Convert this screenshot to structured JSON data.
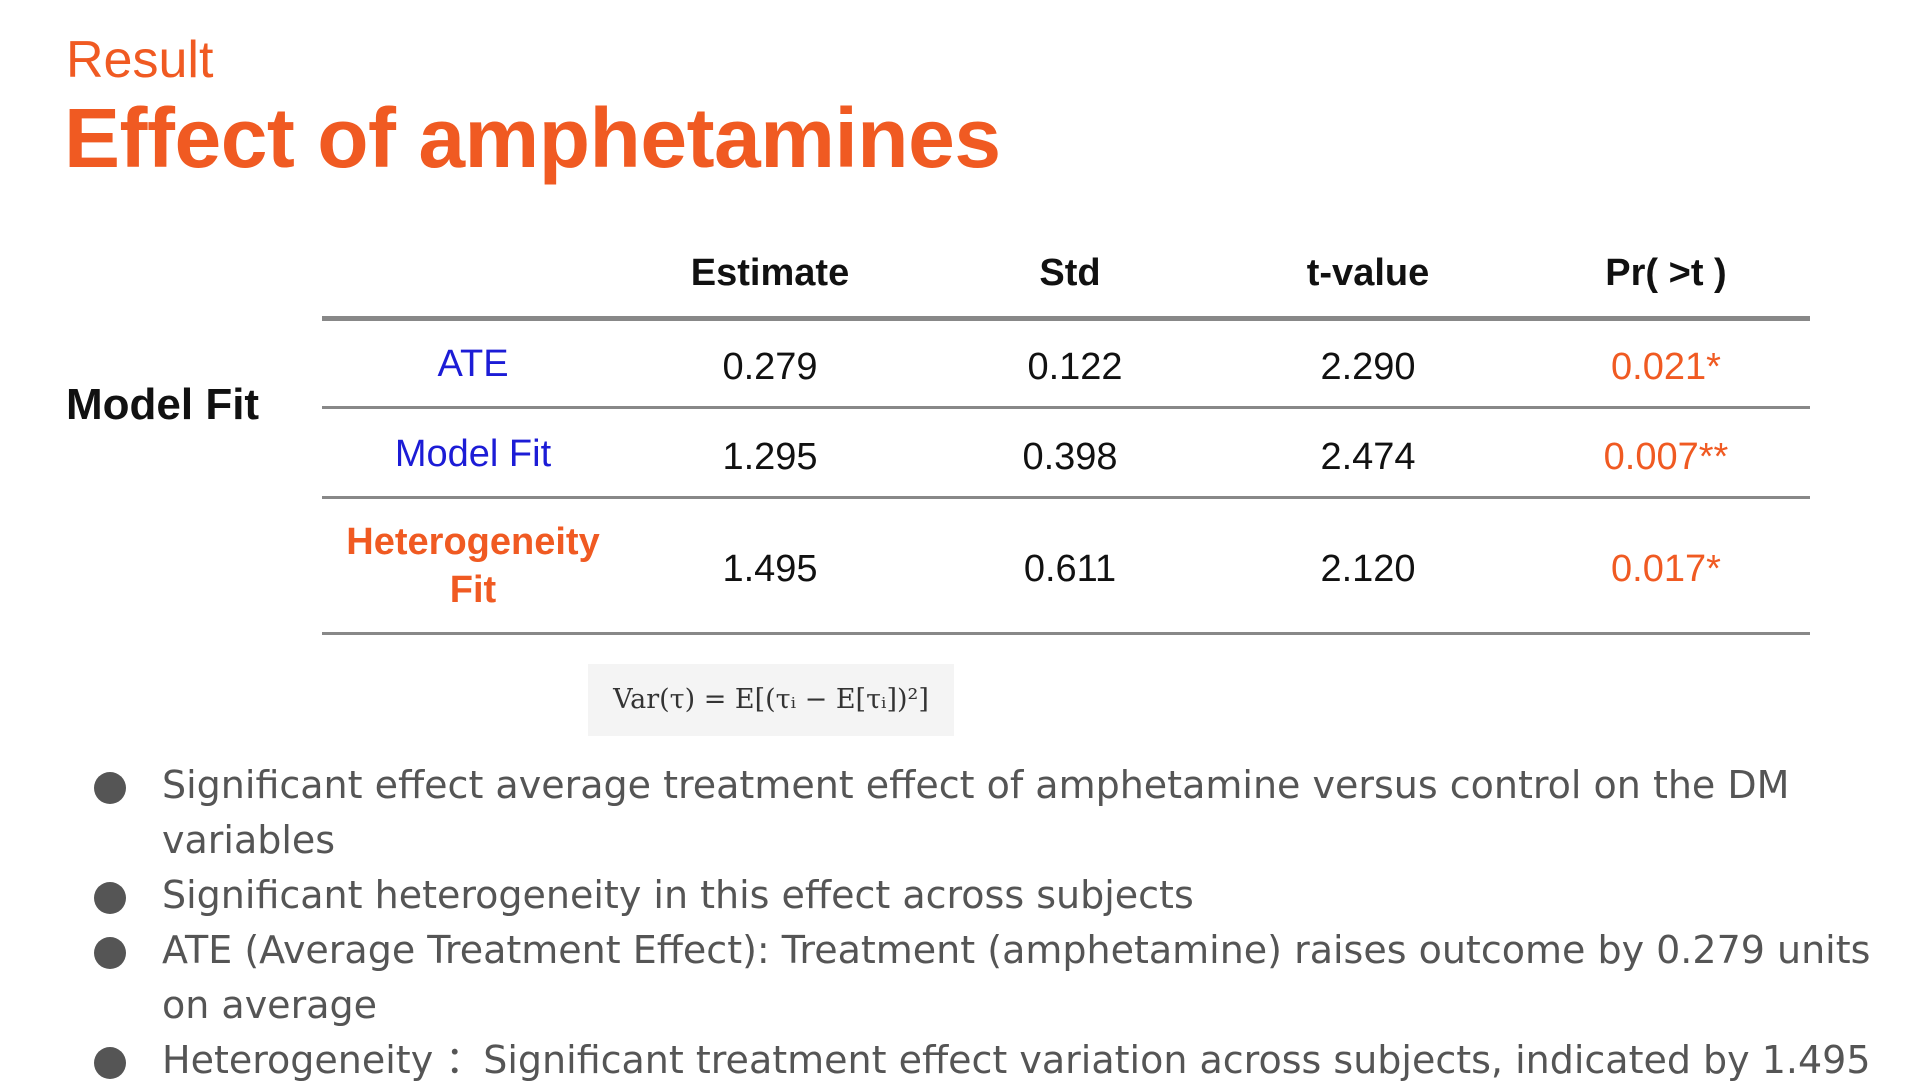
{
  "header": {
    "subtitle": "Result",
    "title": "Effect of amphetamines"
  },
  "side_label": "Model Fit",
  "table": {
    "columns": [
      "Estimate",
      "Std",
      "t-value",
      "Pr( >t )"
    ],
    "rows": [
      {
        "label": "ATE",
        "estimate": "0.279",
        "std": "0.122",
        "t_value": "2.290",
        "p_value": "0.021*"
      },
      {
        "label": "Model Fit",
        "estimate": "1.295",
        "std": "0.398",
        "t_value": "2.474",
        "p_value": "0.007**"
      },
      {
        "label_line1": "Heterogeneity",
        "label_line2": "Fit",
        "estimate": "1.495",
        "std": "0.611",
        "t_value": "2.120",
        "p_value": "0.017*"
      }
    ]
  },
  "formula": "Var(τ) = E[(τᵢ − E[τᵢ])²]",
  "bullets": [
    "Significant effect average treatment effect of amphetamine versus control on the DM variables",
    "Significant heterogeneity in this effect across subjects",
    "ATE (Average Treatment Effect): Treatment (amphetamine) raises outcome by 0.279 units on average",
    "Heterogeneity ：Significant treatment effect variation across subjects, indicated by 1.495"
  ],
  "colors": {
    "accent": "#f05a22",
    "label_blue": "#1c1cd6",
    "bullet_text": "#555555"
  }
}
